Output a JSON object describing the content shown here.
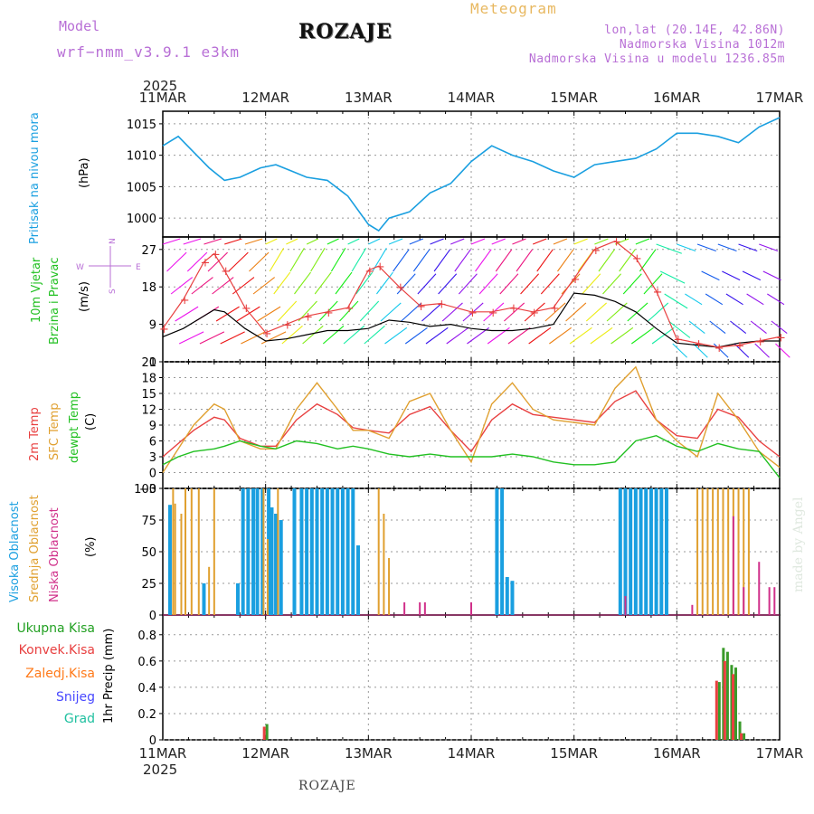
{
  "header": {
    "model_label": "Model",
    "model_name": "wrf−nmm_v3.9.1  e3km",
    "station": "ROZAJE",
    "meteogram_label": "Meteogram",
    "coords": "lon,lat (20.14E, 42.86N)",
    "station_altitude": "Nadmorska Visina 1012m",
    "model_altitude": "Nadmorska Visina u modelu 1236.85m",
    "made_by": "made by Angel",
    "bottom_station": "ROZAJE",
    "year_top": "2025",
    "year_bottom": "2025"
  },
  "colors": {
    "pressure": "#1a9fe0",
    "wind_speed": "#000000",
    "wind_gust": "#e84040",
    "temp_2m": "#e84040",
    "temp_sfc": "#e0a030",
    "dewpoint": "#22c022",
    "cloud_high": "#1a9fe0",
    "cloud_mid": "#e0a030",
    "cloud_low": "#d0308a",
    "precip_total": "#3a9a2a",
    "precip_conv": "#e84040"
  },
  "chart_data": [
    {
      "type": "line",
      "panel": "pressure",
      "labels": [
        "Pritisak na nivou mora",
        "(hPa)"
      ],
      "ylim": [
        997,
        1017
      ],
      "yticks": [
        1000,
        1005,
        1010,
        1015
      ],
      "days": [
        "11MAR",
        "12MAR",
        "13MAR",
        "14MAR",
        "15MAR",
        "16MAR",
        "17MAR"
      ],
      "series": [
        {
          "name": "Pritisak na nivou mora",
          "x": [
            0,
            0.15,
            0.3,
            0.45,
            0.6,
            0.75,
            0.95,
            1.1,
            1.25,
            1.4,
            1.6,
            1.8,
            2.0,
            2.1,
            2.2,
            2.4,
            2.6,
            2.8,
            3.0,
            3.2,
            3.4,
            3.6,
            3.8,
            4.0,
            4.2,
            4.4,
            4.6,
            4.8,
            5.0,
            5.2,
            5.4,
            5.6,
            5.8,
            6.0
          ],
          "y": [
            1011.5,
            1013,
            1010.5,
            1008,
            1006,
            1006.5,
            1008,
            1008.5,
            1007.5,
            1006.5,
            1006,
            1003.5,
            999,
            998,
            1000,
            1001,
            1004,
            1005.5,
            1009,
            1011.5,
            1010,
            1009,
            1007.5,
            1006.5,
            1008.5,
            1009,
            1009.5,
            1011,
            1013.5,
            1013.5,
            1013,
            1012,
            1014.5,
            1016
          ]
        }
      ]
    },
    {
      "type": "line",
      "panel": "wind",
      "labels": [
        "10m Vjetar",
        "Brzina i Pravac",
        "(m/s)"
      ],
      "compass": [
        "N",
        "S",
        "W",
        "E"
      ],
      "ylim": [
        0,
        30
      ],
      "yticks": [
        0,
        9,
        18,
        27
      ],
      "series": [
        {
          "name": "Brzina",
          "x": [
            0,
            0.2,
            0.4,
            0.5,
            0.6,
            0.8,
            1.0,
            1.2,
            1.4,
            1.6,
            1.8,
            2.0,
            2.2,
            2.4,
            2.6,
            2.8,
            3.0,
            3.2,
            3.4,
            3.6,
            3.8,
            4.0,
            4.2,
            4.4,
            4.6,
            4.8,
            5.0,
            5.2,
            5.4,
            5.6,
            5.8,
            6.0
          ],
          "y": [
            6,
            8,
            11,
            12.5,
            12,
            8,
            5,
            5.5,
            6.5,
            7.5,
            7.5,
            8,
            10,
            9.5,
            8.5,
            9,
            8,
            7.5,
            7.5,
            8,
            9,
            16.5,
            16,
            14.5,
            12,
            8,
            4.5,
            4,
            3.5,
            4.5,
            5,
            5
          ]
        },
        {
          "name": "Udar",
          "x": [
            0,
            0.2,
            0.4,
            0.5,
            0.6,
            0.8,
            1.0,
            1.2,
            1.4,
            1.6,
            1.8,
            2.0,
            2.1,
            2.3,
            2.5,
            2.7,
            3.0,
            3.2,
            3.4,
            3.6,
            3.8,
            4.0,
            4.2,
            4.4,
            4.6,
            4.8,
            5.0,
            5.2,
            5.4,
            5.6,
            5.8,
            6.0
          ],
          "y": [
            8,
            15,
            24,
            26,
            22,
            13,
            7,
            9,
            11,
            12,
            13,
            22,
            23,
            18,
            13.5,
            14,
            12,
            12,
            13,
            12,
            13,
            20,
            27,
            29,
            25,
            17,
            5.5,
            4.5,
            3.5,
            4,
            5,
            6
          ]
        }
      ]
    },
    {
      "type": "line",
      "panel": "temperature",
      "labels": [
        "2m Temp",
        "SFC Temp",
        "dewpt Temp",
        "(C)"
      ],
      "ylim": [
        -3,
        21
      ],
      "yticks": [
        -3,
        0,
        3,
        6,
        9,
        12,
        15,
        18,
        21
      ],
      "x": [
        0,
        0.15,
        0.3,
        0.5,
        0.6,
        0.75,
        0.95,
        1.1,
        1.3,
        1.5,
        1.7,
        1.85,
        2.0,
        2.2,
        2.4,
        2.6,
        2.8,
        3.0,
        3.2,
        3.4,
        3.6,
        3.8,
        4.0,
        4.2,
        4.4,
        4.6,
        4.8,
        5.0,
        5.2,
        5.4,
        5.6,
        5.8,
        6.0
      ],
      "series": [
        {
          "name": "2m Temp",
          "y": [
            3,
            5.5,
            8,
            10.5,
            10,
            6.5,
            5,
            5,
            10,
            13,
            11,
            8.5,
            8,
            7.5,
            11,
            12.5,
            8,
            4,
            10,
            13,
            11,
            10.5,
            10,
            9.5,
            13.5,
            15.5,
            10,
            7,
            6.5,
            12,
            10.5,
            6,
            3
          ]
        },
        {
          "name": "SFC Temp",
          "y": [
            0,
            4.5,
            9,
            13,
            12,
            6,
            4.5,
            4.5,
            12,
            17,
            12,
            8,
            8,
            6.5,
            13.5,
            15,
            8,
            2,
            13,
            17,
            12,
            10,
            9.5,
            9,
            16,
            20,
            10,
            6,
            3,
            15,
            10,
            4,
            1
          ]
        },
        {
          "name": "dewpt Temp",
          "y": [
            1.5,
            3,
            4,
            4.5,
            5,
            6,
            5,
            4.5,
            6,
            5.5,
            4.5,
            5,
            4.5,
            3.5,
            3,
            3.5,
            3,
            3,
            3,
            3.5,
            3,
            2,
            1.5,
            1.5,
            2,
            6,
            7,
            5,
            4,
            5.5,
            4.5,
            4,
            -1
          ]
        }
      ]
    },
    {
      "type": "bar",
      "panel": "clouds",
      "labels": [
        "Visoka Oblacnost",
        "Srednja Oblacnost",
        "Niska Oblacnost",
        "(%)"
      ],
      "ylim": [
        0,
        100
      ],
      "yticks": [
        0,
        25,
        50,
        75,
        100
      ],
      "series": [
        {
          "name": "Visoka Oblacnost",
          "x": [
            0.07,
            0.4,
            0.73,
            0.78,
            0.83,
            0.88,
            0.92,
            0.97,
            1.03,
            1.06,
            1.1,
            1.15,
            1.28,
            1.35,
            1.4,
            1.45,
            1.5,
            1.55,
            1.6,
            1.65,
            1.7,
            1.75,
            1.8,
            1.85,
            1.9,
            3.25,
            3.3,
            3.35,
            3.4,
            4.45,
            4.5,
            4.55,
            4.6,
            4.65,
            4.7,
            4.75,
            4.8,
            4.85,
            4.9
          ],
          "y": [
            87,
            25,
            25,
            100,
            100,
            100,
            100,
            100,
            100,
            85,
            80,
            75,
            100,
            100,
            100,
            100,
            100,
            100,
            100,
            100,
            100,
            100,
            100,
            100,
            55,
            100,
            100,
            30,
            27,
            100,
            100,
            100,
            100,
            100,
            100,
            100,
            100,
            100,
            100
          ]
        },
        {
          "name": "Srednja Oblacnost",
          "x": [
            0.1,
            0.12,
            0.18,
            0.22,
            0.28,
            0.35,
            0.45,
            0.5,
            0.98,
            1.02,
            1.12,
            2.1,
            2.15,
            2.2,
            5.2,
            5.25,
            5.3,
            5.35,
            5.4,
            5.45,
            5.5,
            5.55,
            5.6,
            5.65,
            5.7
          ],
          "y": [
            100,
            88,
            80,
            100,
            100,
            100,
            38,
            100,
            100,
            60,
            100,
            100,
            80,
            45,
            100,
            100,
            100,
            100,
            100,
            100,
            100,
            100,
            100,
            100,
            100
          ]
        },
        {
          "name": "Niska Oblacnost",
          "x": [
            2.35,
            2.5,
            2.55,
            3.0,
            4.5,
            5.15,
            5.55,
            5.65,
            5.8,
            5.9,
            5.95
          ],
          "y": [
            10,
            10,
            10,
            10,
            15,
            8,
            78,
            22,
            42,
            22,
            22
          ]
        }
      ]
    },
    {
      "type": "bar",
      "panel": "precipitation",
      "labels": [
        "Ukupna Kisa",
        "Konvek.Kisa",
        "Zaledj.Kisa",
        "Snijeg",
        "Grad",
        "1hr Precip (mm)"
      ],
      "ylim": [
        0,
        0.95
      ],
      "yticks": [
        0,
        0.2,
        0.4,
        0.6,
        0.8
      ],
      "series": [
        {
          "name": "Ukupna Kisa",
          "x": [
            1.0,
            5.4,
            5.44,
            5.48,
            5.52,
            5.56,
            5.6,
            5.64
          ],
          "y": [
            0.12,
            0.44,
            0.7,
            0.67,
            0.57,
            0.55,
            0.14,
            0.05
          ]
        },
        {
          "name": "Konvek.Kisa",
          "x": [
            1.0,
            5.4,
            5.44,
            5.48,
            5.52,
            5.56,
            5.6,
            5.64
          ],
          "y": [
            0.1,
            0.45,
            0.0,
            0.6,
            0.0,
            0.5,
            0.0,
            0.05
          ]
        }
      ]
    }
  ]
}
